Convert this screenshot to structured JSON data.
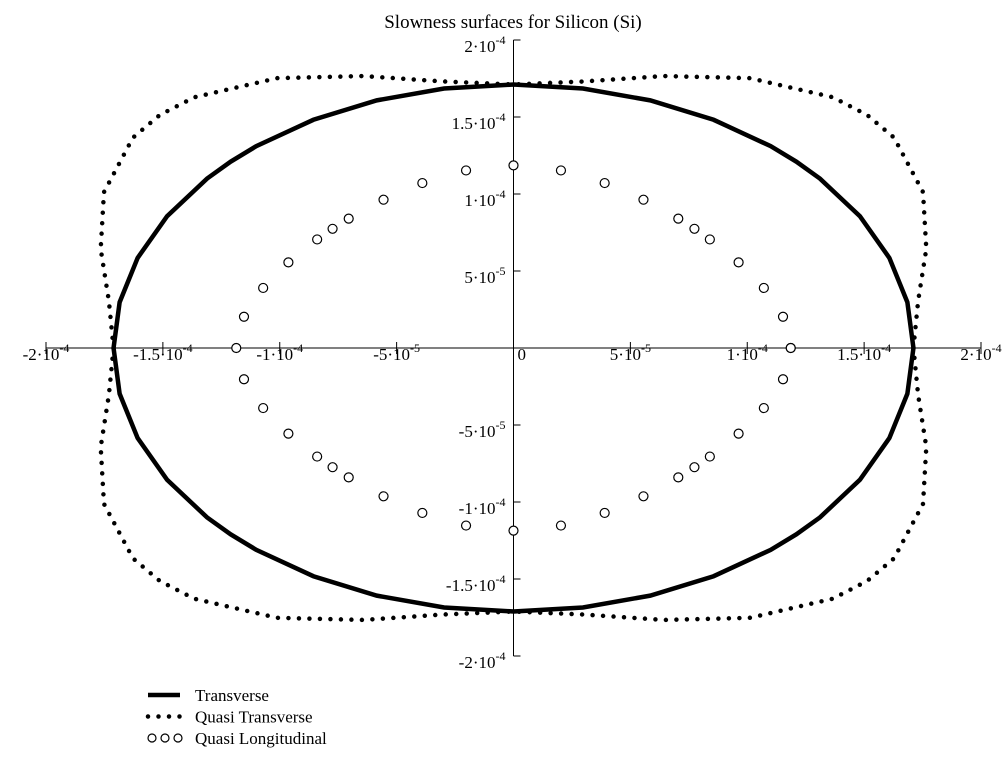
{
  "chart_data": {
    "type": "line",
    "title": "Slowness surfaces for Silicon (Si)",
    "xlim": [
      -0.0002,
      0.0002
    ],
    "ylim": [
      -0.0002,
      0.0002
    ],
    "xticks": [
      {
        "value": -0.0002,
        "label": "-2·10-4"
      },
      {
        "value": -0.00015,
        "label": "-1.5·10-4"
      },
      {
        "value": -0.0001,
        "label": "-1·10-4"
      },
      {
        "value": -5e-05,
        "label": "-5·10-5"
      },
      0,
      {
        "value": 5e-05,
        "label": "5·10-5"
      },
      {
        "value": 0.0001,
        "label": "1·10-4"
      },
      {
        "value": 0.00015,
        "label": "1.5·10-4"
      },
      {
        "value": 0.0002,
        "label": "2·10-4"
      }
    ],
    "yticks": [
      {
        "value": -0.0002,
        "label": "-2·10-4"
      },
      {
        "value": -0.00015,
        "label": "-1.5·10-4"
      },
      {
        "value": -0.0001,
        "label": "-1·10-4"
      },
      {
        "value": -5e-05,
        "label": "-5·10-5"
      },
      {
        "value": 5e-05,
        "label": "5·10-5"
      },
      {
        "value": 0.0001,
        "label": "1·10-4"
      },
      {
        "value": 0.00015,
        "label": "1.5·10-4"
      },
      {
        "value": 0.0002,
        "label": "2·10-4"
      }
    ],
    "legend": "bottom-left",
    "series": [
      {
        "name": "Transverse",
        "color": "#000000",
        "style": "solid",
        "x": [
          0.0001711,
          0.0001685,
          0.0001608,
          0.0001482,
          0.0001311,
          0.000121,
          0.00011,
          8.56e-05,
          5.85e-05,
          2.97e-05,
          0,
          -2.97e-05,
          -5.85e-05,
          -8.56e-05,
          -0.00011,
          -0.000121,
          -0.0001311,
          -0.0001482,
          -0.0001608,
          -0.0001685,
          -0.0001711,
          -0.0001685,
          -0.0001608,
          -0.0001482,
          -0.0001311,
          -0.000121,
          -0.00011,
          -8.56e-05,
          -5.85e-05,
          -2.97e-05,
          0,
          2.97e-05,
          5.85e-05,
          8.56e-05,
          0.00011,
          0.000121,
          0.0001311,
          0.0001482,
          0.0001608,
          0.0001685,
          0.0001711
        ],
        "values": [
          0,
          2.97e-05,
          5.85e-05,
          8.56e-05,
          0.00011,
          0.000121,
          0.0001311,
          0.0001482,
          0.0001608,
          0.0001685,
          0.0001711,
          0.0001685,
          0.0001608,
          0.0001482,
          0.0001311,
          0.000121,
          0.00011,
          8.56e-05,
          5.85e-05,
          2.97e-05,
          0,
          -2.97e-05,
          -5.85e-05,
          -8.56e-05,
          -0.00011,
          -0.000121,
          -0.0001311,
          -0.0001482,
          -0.0001608,
          -0.0001685,
          -0.0001711,
          -0.0001685,
          -0.0001608,
          -0.0001482,
          -0.0001311,
          -0.000121,
          -0.00011,
          -8.56e-05,
          -5.85e-05,
          -2.97e-05,
          0
        ]
      },
      {
        "name": "Quasi Transverse",
        "color": "#000000",
        "style": "dotted",
        "x": [
          0.0001711,
          0.0001731,
          0.0001766,
          0.0001752,
          0.0001628,
          0.0001513,
          0.0001366,
          0.0001012,
          6.43e-05,
          3.05e-05,
          0,
          -3.05e-05,
          -6.43e-05,
          -0.0001012,
          -0.0001366,
          -0.0001513,
          -0.0001628,
          -0.0001752,
          -0.0001766,
          -0.0001731,
          -0.0001711,
          -0.0001731,
          -0.0001766,
          -0.0001752,
          -0.0001628,
          -0.0001513,
          -0.0001366,
          -0.0001012,
          -6.43e-05,
          -3.05e-05,
          0,
          3.05e-05,
          6.43e-05,
          0.0001012,
          0.0001366,
          0.0001513,
          0.0001628,
          0.0001752,
          0.0001766,
          0.0001731,
          0.0001711
        ],
        "values": [
          0,
          3.05e-05,
          6.43e-05,
          0.0001012,
          0.0001366,
          0.0001513,
          0.0001628,
          0.0001752,
          0.0001766,
          0.0001731,
          0.0001711,
          0.0001731,
          0.0001766,
          0.0001752,
          0.0001628,
          0.0001513,
          0.0001366,
          0.0001012,
          6.43e-05,
          3.05e-05,
          0,
          -3.05e-05,
          -6.43e-05,
          -0.0001012,
          -0.0001366,
          -0.0001513,
          -0.0001628,
          -0.0001752,
          -0.0001766,
          -0.0001731,
          -0.0001711,
          -0.0001731,
          -0.0001766,
          -0.0001752,
          -0.0001628,
          -0.0001513,
          -0.0001366,
          -0.0001012,
          -6.43e-05,
          -3.05e-05,
          0
        ]
      },
      {
        "name": "Quasi Longitudinal",
        "color": "#000000",
        "style": "circles",
        "x": [
          0.0001186,
          0.0001153,
          0.0001071,
          9.63e-05,
          8.4e-05,
          7.74e-05,
          7.05e-05,
          5.56e-05,
          3.9e-05,
          2.03e-05,
          0,
          -2.03e-05,
          -3.9e-05,
          -5.56e-05,
          -7.05e-05,
          -7.74e-05,
          -8.4e-05,
          -9.63e-05,
          -0.0001071,
          -0.0001153,
          -0.0001186,
          -0.0001153,
          -0.0001071,
          -9.63e-05,
          -8.4e-05,
          -7.74e-05,
          -7.05e-05,
          -5.56e-05,
          -3.9e-05,
          -2.03e-05,
          0,
          2.03e-05,
          3.9e-05,
          5.56e-05,
          7.05e-05,
          7.74e-05,
          8.4e-05,
          9.63e-05,
          0.0001071,
          0.0001153,
          0.0001186
        ],
        "values": [
          0,
          2.03e-05,
          3.9e-05,
          5.56e-05,
          7.05e-05,
          7.74e-05,
          8.4e-05,
          9.63e-05,
          0.0001071,
          0.0001153,
          0.0001186,
          0.0001153,
          0.0001071,
          9.63e-05,
          8.4e-05,
          7.74e-05,
          7.05e-05,
          5.56e-05,
          3.9e-05,
          2.03e-05,
          0,
          -2.03e-05,
          -3.9e-05,
          -5.56e-05,
          -7.05e-05,
          -7.74e-05,
          -8.4e-05,
          -9.63e-05,
          -0.0001071,
          -0.0001153,
          -0.0001186,
          -0.0001153,
          -0.0001071,
          -9.63e-05,
          -8.4e-05,
          -7.74e-05,
          -7.05e-05,
          -5.56e-05,
          -3.9e-05,
          -2.03e-05,
          0
        ]
      }
    ]
  }
}
